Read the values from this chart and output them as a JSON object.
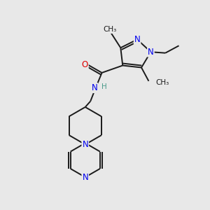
{
  "background_color": "#e8e8e8",
  "bond_color": "#1a1a1a",
  "atom_colors": {
    "N": "#0000ee",
    "O": "#dd0000",
    "C": "#1a1a1a",
    "H": "#4a9a8a"
  },
  "font_size_atoms": 8.5,
  "figsize": [
    3.0,
    3.0
  ],
  "dpi": 100
}
